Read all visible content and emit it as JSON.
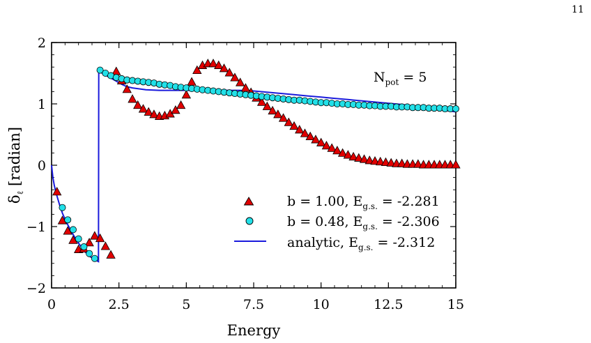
{
  "page": {
    "number": "11"
  },
  "chart_data": {
    "type": "scatter",
    "title": "",
    "xlabel": "Energy",
    "ylabel_symbol": "δ",
    "ylabel_sub": "ℓ",
    "ylabel_rest": " [radian]",
    "xlim": [
      0,
      15
    ],
    "ylim": [
      -2,
      2
    ],
    "x_ticks": [
      0,
      2.5,
      5,
      7.5,
      10,
      12.5,
      15
    ],
    "x_tick_labels": [
      "0",
      "2.5",
      "5",
      "7.5",
      "10",
      "12.5",
      "15"
    ],
    "y_ticks": [
      -2,
      -1,
      0,
      1,
      2
    ],
    "y_tick_labels": [
      "−2",
      "−1",
      "0",
      "1",
      "2"
    ],
    "grid": false,
    "legend_position": "lower-right",
    "annotation": {
      "main": "N",
      "sub": "pot",
      "rest": " = 5"
    },
    "series": [
      {
        "legend_main": "b = 1.00, E",
        "legend_sub": "g.s.",
        "legend_rest": " = -2.281",
        "marker": "triangle",
        "color": "#e00000",
        "x": [
          0.2,
          0.4,
          0.6,
          0.8,
          1.0,
          1.2,
          1.4,
          1.6,
          1.8,
          2.0,
          2.2,
          2.4,
          2.6,
          2.8,
          3.0,
          3.2,
          3.4,
          3.6,
          3.8,
          4.0,
          4.2,
          4.4,
          4.6,
          4.8,
          5.0,
          5.2,
          5.4,
          5.6,
          5.8,
          6.0,
          6.2,
          6.4,
          6.6,
          6.8,
          7.0,
          7.2,
          7.4,
          7.6,
          7.8,
          8.0,
          8.2,
          8.4,
          8.6,
          8.8,
          9.0,
          9.2,
          9.4,
          9.6,
          9.8,
          10.0,
          10.2,
          10.4,
          10.6,
          10.8,
          11.0,
          11.2,
          11.4,
          11.6,
          11.8,
          12.0,
          12.2,
          12.4,
          12.6,
          12.8,
          13.0,
          13.2,
          13.4,
          13.6,
          13.8,
          14.0,
          14.2,
          14.4,
          14.6,
          14.8,
          15.0
        ],
        "y": [
          -0.43,
          -0.9,
          -1.07,
          -1.22,
          -1.37,
          -1.36,
          -1.26,
          -1.15,
          -1.19,
          -1.32,
          -1.46,
          1.53,
          1.38,
          1.24,
          1.08,
          0.98,
          0.92,
          0.87,
          0.83,
          0.8,
          0.81,
          0.84,
          0.9,
          0.98,
          1.15,
          1.36,
          1.55,
          1.63,
          1.66,
          1.66,
          1.63,
          1.58,
          1.51,
          1.43,
          1.35,
          1.26,
          1.19,
          1.1,
          1.03,
          0.96,
          0.89,
          0.83,
          0.77,
          0.7,
          0.64,
          0.58,
          0.52,
          0.47,
          0.42,
          0.37,
          0.32,
          0.28,
          0.24,
          0.2,
          0.17,
          0.14,
          0.12,
          0.1,
          0.08,
          0.07,
          0.06,
          0.05,
          0.04,
          0.03,
          0.03,
          0.02,
          0.02,
          0.02,
          0.01,
          0.01,
          0.01,
          0.01,
          0.01,
          0.01,
          0.01
        ]
      },
      {
        "legend_main": "b = 0.48, E",
        "legend_sub": "g.s.",
        "legend_rest": " = -2.306",
        "marker": "circle",
        "color": "#22e0e8",
        "x": [
          0.4,
          0.6,
          0.8,
          1.0,
          1.2,
          1.4,
          1.6,
          1.8,
          2.0,
          2.2,
          2.4,
          2.6,
          2.8,
          3.0,
          3.2,
          3.4,
          3.6,
          3.8,
          4.0,
          4.2,
          4.4,
          4.6,
          4.8,
          5.0,
          5.2,
          5.4,
          5.6,
          5.8,
          6.0,
          6.2,
          6.4,
          6.6,
          6.8,
          7.0,
          7.2,
          7.4,
          7.6,
          7.8,
          8.0,
          8.2,
          8.4,
          8.6,
          8.8,
          9.0,
          9.2,
          9.4,
          9.6,
          9.8,
          10.0,
          10.2,
          10.4,
          10.6,
          10.8,
          11.0,
          11.2,
          11.4,
          11.6,
          11.8,
          12.0,
          12.2,
          12.4,
          12.6,
          12.8,
          13.0,
          13.2,
          13.4,
          13.6,
          13.8,
          14.0,
          14.2,
          14.4,
          14.6,
          14.8,
          15.0
        ],
        "y": [
          -0.69,
          -0.89,
          -1.05,
          -1.2,
          -1.33,
          -1.44,
          -1.52,
          1.55,
          1.5,
          1.46,
          1.43,
          1.41,
          1.39,
          1.38,
          1.37,
          1.36,
          1.35,
          1.34,
          1.32,
          1.31,
          1.3,
          1.28,
          1.27,
          1.26,
          1.25,
          1.24,
          1.23,
          1.22,
          1.21,
          1.2,
          1.19,
          1.18,
          1.17,
          1.16,
          1.15,
          1.14,
          1.13,
          1.12,
          1.11,
          1.1,
          1.09,
          1.08,
          1.07,
          1.06,
          1.06,
          1.05,
          1.04,
          1.03,
          1.02,
          1.02,
          1.01,
          1.0,
          1.0,
          0.99,
          0.99,
          0.98,
          0.98,
          0.97,
          0.97,
          0.96,
          0.96,
          0.96,
          0.95,
          0.95,
          0.95,
          0.94,
          0.94,
          0.94,
          0.93,
          0.93,
          0.93,
          0.92,
          0.92,
          0.92
        ]
      },
      {
        "legend_main": "analytic, E",
        "legend_sub": "g.s.",
        "legend_rest": " = -2.312",
        "marker": "line",
        "color": "#1a1adc",
        "x": [
          0.0,
          0.05,
          0.1,
          0.2,
          0.3,
          0.4,
          0.5,
          0.6,
          0.8,
          1.0,
          1.2,
          1.4,
          1.6,
          1.74,
          1.75,
          1.8,
          2.0,
          2.2,
          2.4,
          2.6,
          2.8,
          3.0,
          3.5,
          4.0,
          4.5,
          5.0,
          5.5,
          6.0,
          6.5,
          7.0,
          7.5,
          8.0,
          8.5,
          9.0,
          9.5,
          10.0,
          10.5,
          11.0,
          11.5,
          12.0,
          12.5,
          13.0,
          13.5,
          14.0,
          14.5,
          15.0
        ],
        "y": [
          0.0,
          -0.2,
          -0.33,
          -0.5,
          -0.65,
          -0.78,
          -0.88,
          -0.97,
          -1.13,
          -1.27,
          -1.39,
          -1.48,
          -1.54,
          -1.57,
          1.55,
          1.52,
          1.47,
          1.42,
          1.37,
          1.32,
          1.28,
          1.26,
          1.23,
          1.22,
          1.22,
          1.22,
          1.22,
          1.22,
          1.22,
          1.22,
          1.21,
          1.19,
          1.17,
          1.15,
          1.13,
          1.11,
          1.09,
          1.07,
          1.05,
          1.03,
          1.01,
          0.99,
          0.96,
          0.93,
          0.9,
          0.87
        ]
      }
    ]
  }
}
